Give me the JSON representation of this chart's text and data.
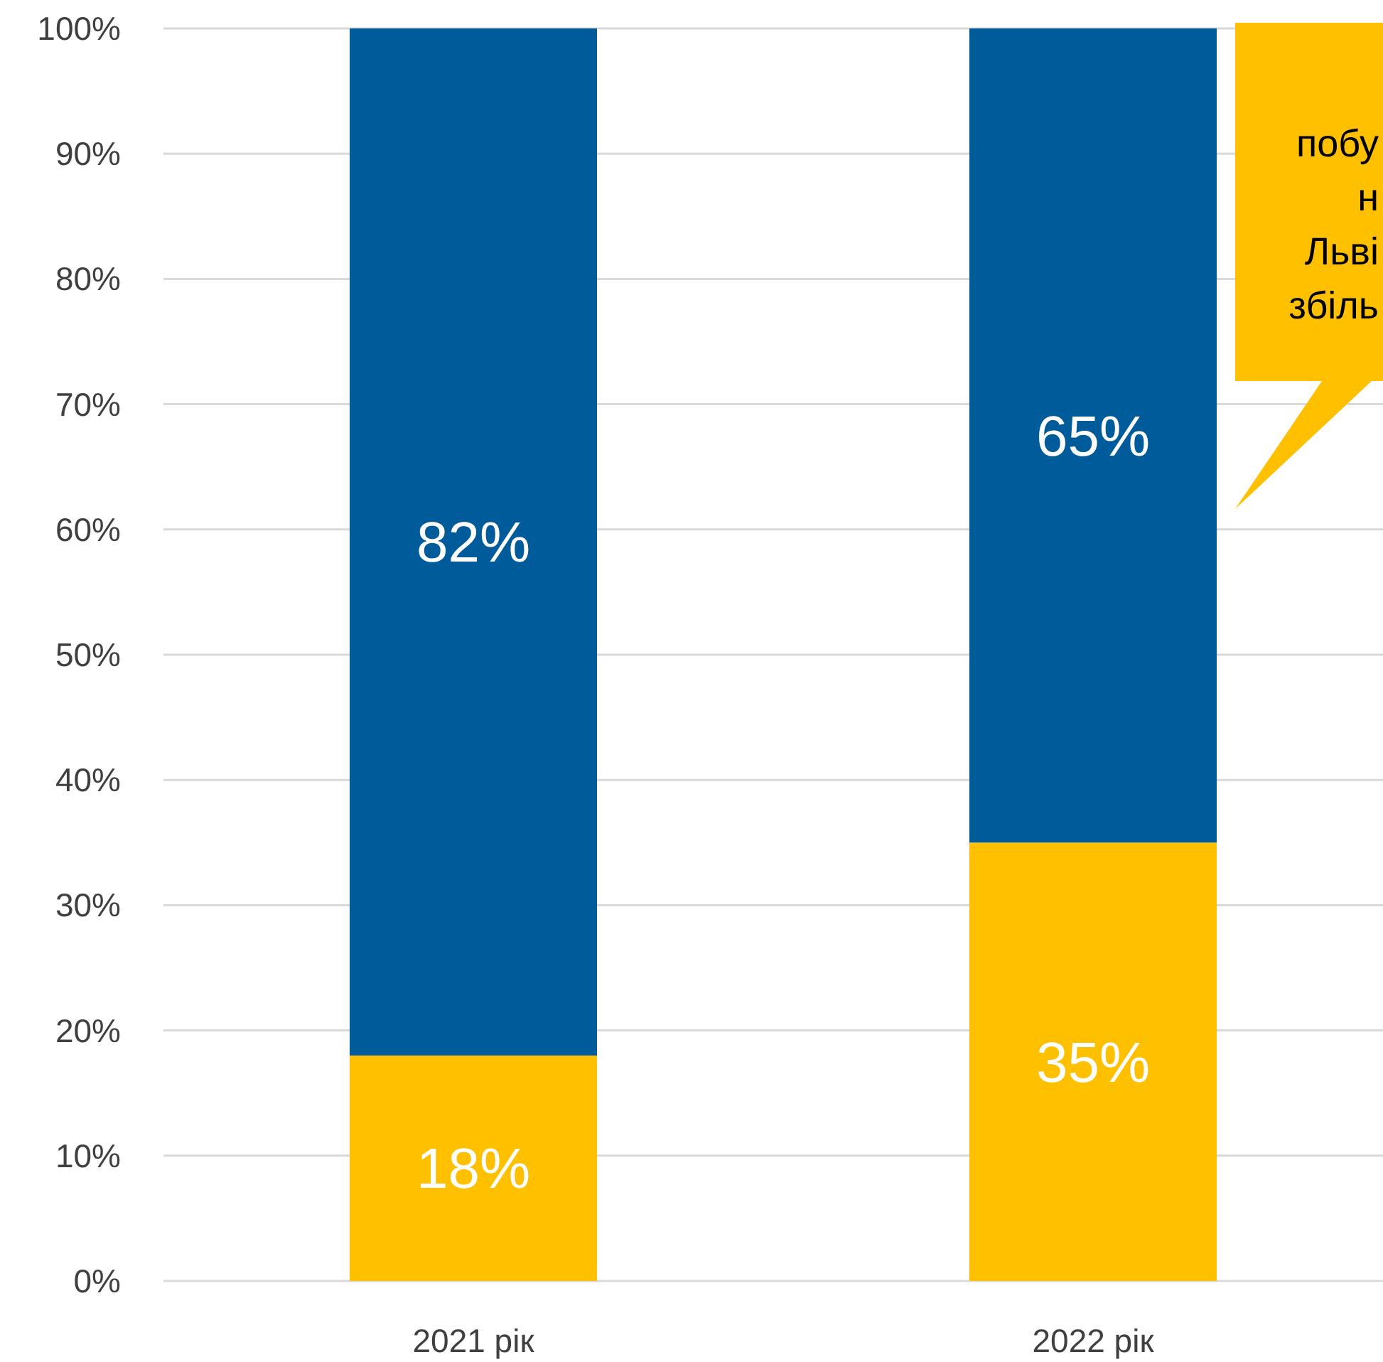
{
  "chart_data": {
    "type": "bar",
    "stacked": true,
    "categories": [
      "2021 рік",
      "2022 рік"
    ],
    "series": [
      {
        "color": "#ffc000",
        "values": [
          18,
          35
        ],
        "value_labels": [
          "18%",
          "35%"
        ]
      },
      {
        "color": "#005b9a",
        "values": [
          82,
          65
        ],
        "value_labels": [
          "82%",
          "65%"
        ]
      }
    ],
    "ylim": [
      0,
      100
    ],
    "yticks": [
      {
        "value": 0,
        "label": "0%"
      },
      {
        "value": 10,
        "label": "10%"
      },
      {
        "value": 20,
        "label": "20%"
      },
      {
        "value": 30,
        "label": "30%"
      },
      {
        "value": 40,
        "label": "40%"
      },
      {
        "value": 50,
        "label": "50%"
      },
      {
        "value": 60,
        "label": "60%"
      },
      {
        "value": 70,
        "label": "70%"
      },
      {
        "value": 80,
        "label": "80%"
      },
      {
        "value": 90,
        "label": "90%"
      },
      {
        "value": 100,
        "label": "100%"
      }
    ],
    "grid": "y",
    "annotations": [
      "побу",
      "н",
      "Льві",
      "збіль"
    ]
  }
}
